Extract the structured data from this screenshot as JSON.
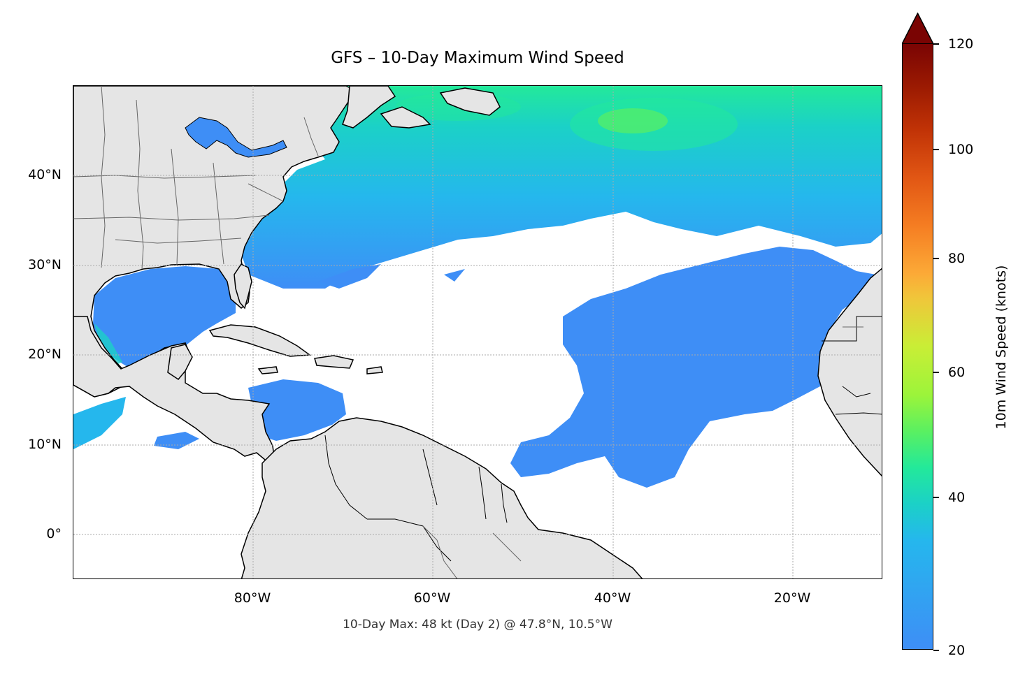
{
  "title": "GFS – 10-Day Maximum Wind Speed",
  "footer": "10-Day Max: 48 kt (Day 2) @ 47.8°N, 10.5°W",
  "colorbar": {
    "label": "10m Wind Speed (knots)",
    "ticks": [
      "20",
      "40",
      "60",
      "80",
      "100",
      "120"
    ],
    "min": 20,
    "max": 120
  },
  "map": {
    "lat_labels": [
      "40°N",
      "30°N",
      "20°N",
      "10°N",
      "0°"
    ],
    "lon_labels": [
      "80°W",
      "60°W",
      "40°W",
      "20°W"
    ],
    "extent": {
      "lon_min": -100,
      "lon_max": -10,
      "lat_min": -5,
      "lat_max": 50
    }
  },
  "colors": {
    "land": "#e5e5e5",
    "coast": "#000000",
    "borders": "#666666",
    "wind_low": "#3e8ef6",
    "wind_mid": "#23e99a",
    "wind_peak": "#5af061",
    "colorbar_max": "#7a0403"
  }
}
